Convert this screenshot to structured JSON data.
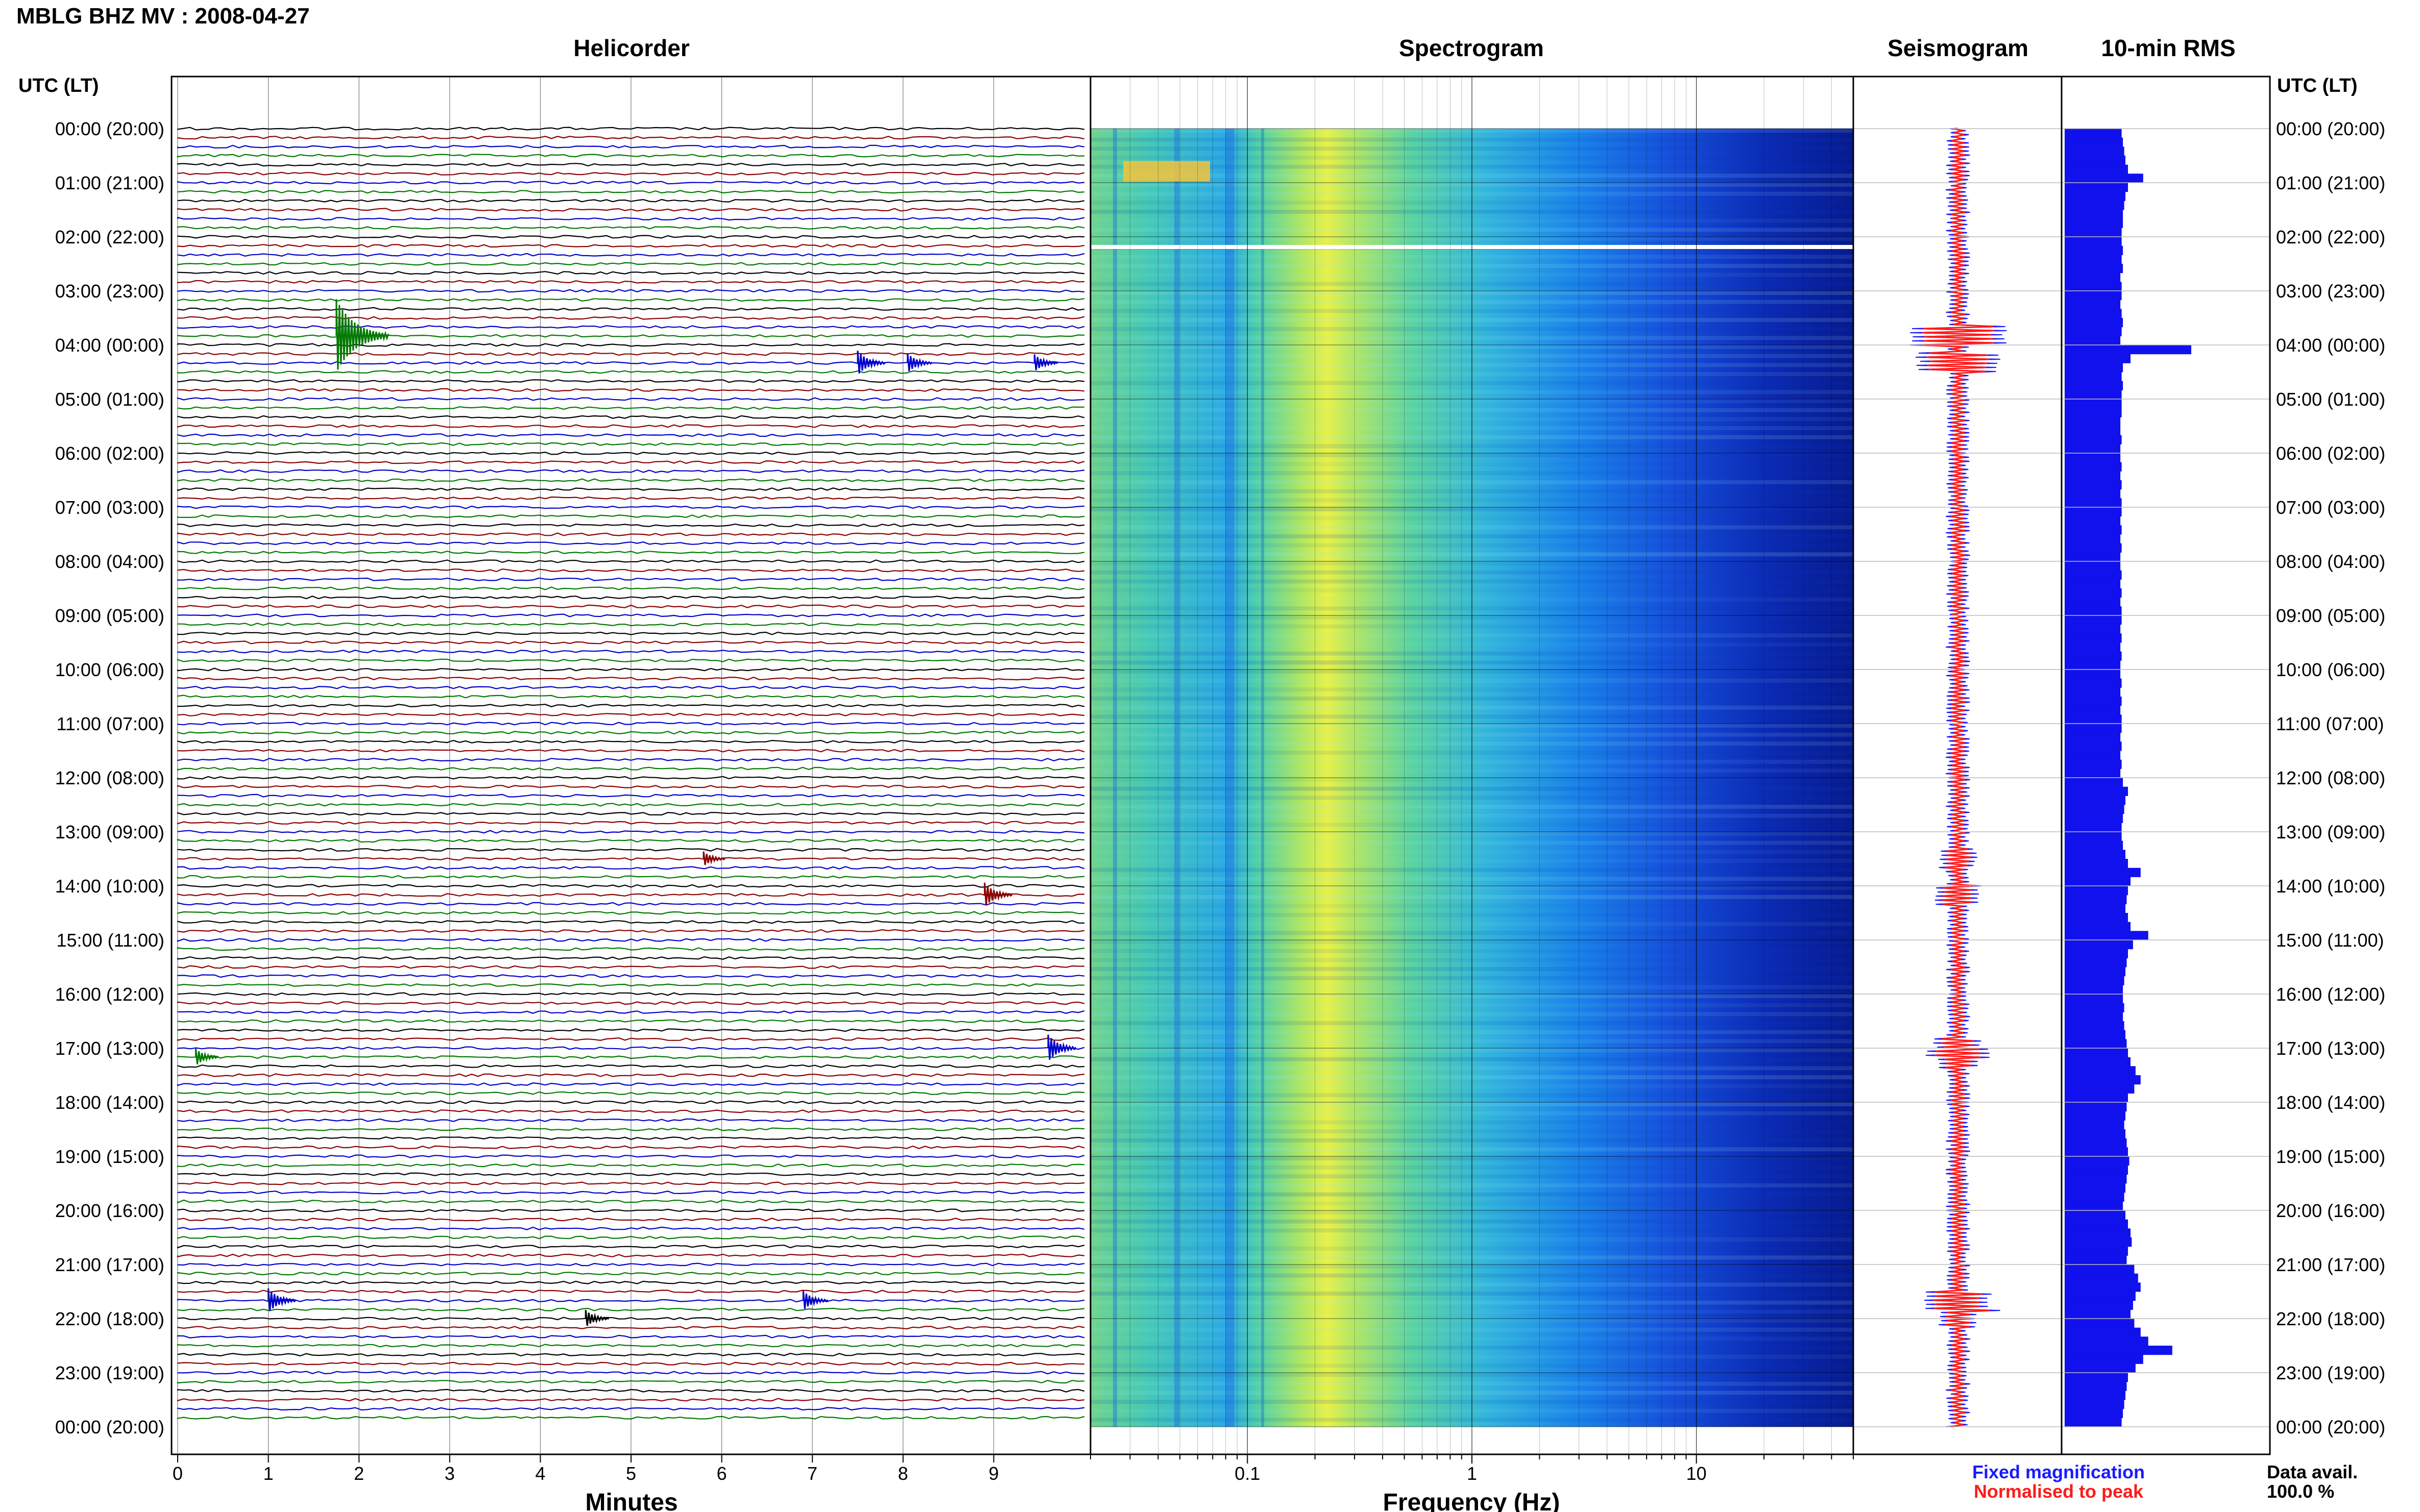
{
  "header": {
    "station_title": "MBLG BHZ MV : 2008-04-27"
  },
  "panels": {
    "helicorder": "Helicorder",
    "spectrogram": "Spectrogram",
    "seismogram": "Seismogram",
    "rms": "10-min RMS"
  },
  "axis": {
    "left_time_label": "UTC (LT)",
    "right_time_label": "UTC (LT)",
    "minutes_label": "Minutes",
    "frequency_label": "Frequency (Hz)"
  },
  "legend": {
    "fixed": "Fixed magnification",
    "normalised": "Normalised to peak",
    "fixed_color": "#1a1aff",
    "normalised_color": "#ff1a1a"
  },
  "data_availability": {
    "label": "Data avail.",
    "value": "100.0 %"
  },
  "colors": {
    "trace_cycle": [
      "#000000",
      "#8b0000",
      "#0000cc",
      "#007a00"
    ],
    "rms_bar": "#1111ee"
  },
  "chart_data": {
    "type": "heatmap",
    "time_ticks": [
      "00:00 (20:00)",
      "01:00 (21:00)",
      "02:00 (22:00)",
      "03:00 (23:00)",
      "04:00 (00:00)",
      "05:00 (01:00)",
      "06:00 (02:00)",
      "07:00 (03:00)",
      "08:00 (04:00)",
      "09:00 (05:00)",
      "10:00 (06:00)",
      "11:00 (07:00)",
      "12:00 (08:00)",
      "13:00 (09:00)",
      "14:00 (10:00)",
      "15:00 (11:00)",
      "16:00 (12:00)",
      "17:00 (13:00)",
      "18:00 (14:00)",
      "19:00 (15:00)",
      "20:00 (16:00)",
      "21:00 (17:00)",
      "22:00 (18:00)",
      "23:00 (19:00)",
      "00:00 (20:00)"
    ],
    "minutes_ticks": [
      "0",
      "1",
      "2",
      "3",
      "4",
      "5",
      "6",
      "7",
      "8",
      "9"
    ],
    "minutes_range": [
      0,
      10
    ],
    "frequency_ticks": [
      "0.1",
      "1",
      "10"
    ],
    "frequency_range": [
      0.02,
      50
    ],
    "frequency_scale": "log",
    "lines_per_hour": 6,
    "hours": 24,
    "events": [
      {
        "hour": 3.83,
        "minute": 1.75,
        "amp": 6
      },
      {
        "hour": 4.33,
        "minute": 7.5,
        "amp": 2
      },
      {
        "hour": 4.33,
        "minute": 8.05,
        "amp": 1.6
      },
      {
        "hour": 4.33,
        "minute": 9.45,
        "amp": 1.4
      },
      {
        "hour": 13.5,
        "minute": 5.8,
        "amp": 1.2
      },
      {
        "hour": 14.17,
        "minute": 8.9,
        "amp": 2
      },
      {
        "hour": 17,
        "minute": 9.6,
        "amp": 2.2
      },
      {
        "hour": 17.17,
        "minute": 0.2,
        "amp": 1.4
      },
      {
        "hour": 21.67,
        "minute": 1.0,
        "amp": 2
      },
      {
        "hour": 21.67,
        "minute": 6.9,
        "amp": 1.6
      },
      {
        "hour": 22.0,
        "minute": 4.5,
        "amp": 1.4
      }
    ],
    "rms_values": [
      0.45,
      0.46,
      0.47,
      0.48,
      0.5,
      0.62,
      0.5,
      0.48,
      0.47,
      0.46,
      0.46,
      0.45,
      0.45,
      0.46,
      0.45,
      0.46,
      0.44,
      0.45,
      0.45,
      0.44,
      0.45,
      0.46,
      0.45,
      0.44,
      1.0,
      0.52,
      0.46,
      0.45,
      0.46,
      0.45,
      0.45,
      0.45,
      0.44,
      0.44,
      0.45,
      0.44,
      0.44,
      0.45,
      0.44,
      0.45,
      0.44,
      0.45,
      0.45,
      0.44,
      0.45,
      0.44,
      0.45,
      0.44,
      0.44,
      0.45,
      0.44,
      0.45,
      0.44,
      0.45,
      0.45,
      0.44,
      0.45,
      0.44,
      0.45,
      0.44,
      0.44,
      0.45,
      0.44,
      0.45,
      0.44,
      0.45,
      0.45,
      0.44,
      0.45,
      0.44,
      0.45,
      0.44,
      0.46,
      0.5,
      0.48,
      0.47,
      0.46,
      0.45,
      0.45,
      0.46,
      0.48,
      0.5,
      0.6,
      0.52,
      0.5,
      0.49,
      0.48,
      0.5,
      0.52,
      0.66,
      0.54,
      0.5,
      0.49,
      0.48,
      0.47,
      0.46,
      0.46,
      0.47,
      0.46,
      0.47,
      0.48,
      0.49,
      0.5,
      0.52,
      0.56,
      0.6,
      0.55,
      0.5,
      0.49,
      0.48,
      0.47,
      0.48,
      0.49,
      0.5,
      0.51,
      0.5,
      0.49,
      0.48,
      0.47,
      0.46,
      0.48,
      0.5,
      0.52,
      0.53,
      0.5,
      0.49,
      0.55,
      0.58,
      0.6,
      0.56,
      0.54,
      0.52,
      0.55,
      0.6,
      0.66,
      0.85,
      0.62,
      0.56,
      0.5,
      0.49,
      0.48,
      0.47,
      0.46,
      0.45
    ]
  }
}
